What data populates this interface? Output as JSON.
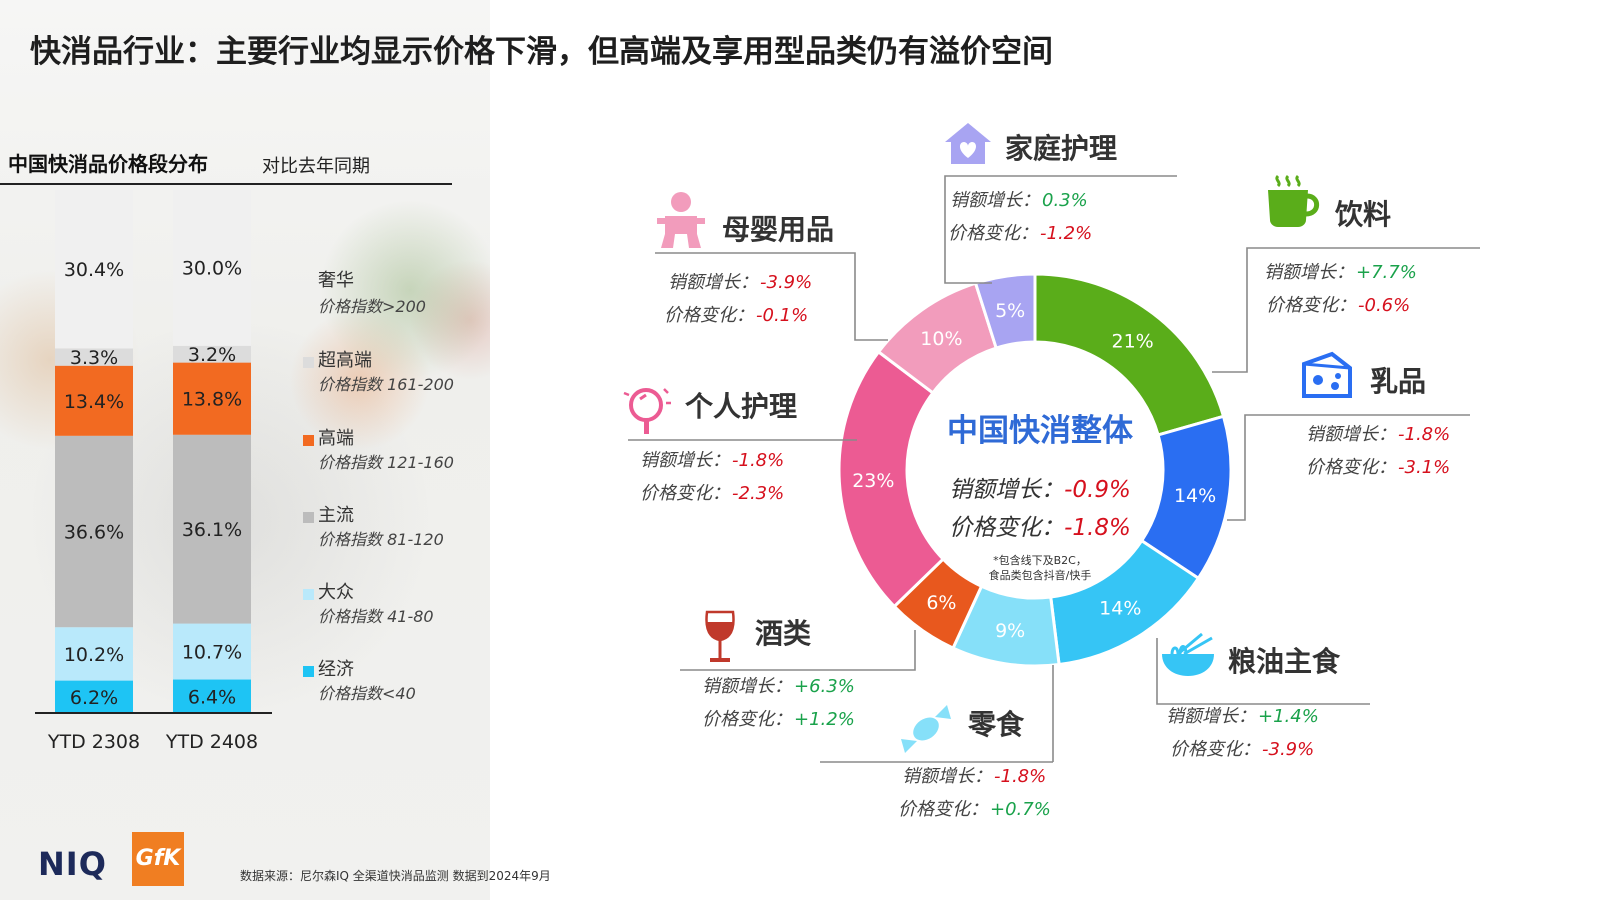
{
  "page_title": "快消品行业：主要行业均显示价格下滑，但高端及享用型品类仍有溢价空间",
  "left_panel": {
    "heading": "中国快消品价格段分布",
    "compare": "对比去年同期"
  },
  "footer": {
    "source": "数据来源：尼尔森IQ 全渠道快消品监测 数据到2024年9月",
    "logo_niq": "NIQ",
    "logo_gfk": "GfK"
  },
  "chart_data": [
    {
      "type": "bar",
      "stacked": true,
      "categories": [
        "YTD 2308",
        "YTD 2408"
      ],
      "ylim": [
        0,
        100
      ],
      "series": [
        {
          "name": "经济",
          "range": "价格指数<40",
          "color": "#1ec4f4",
          "values": [
            6.2,
            6.4
          ],
          "labels": [
            "6.2%",
            "6.4%"
          ]
        },
        {
          "name": "大众",
          "range": "价格指数 41-80",
          "color": "#b9e9fb",
          "values": [
            10.2,
            10.7
          ],
          "labels": [
            "10.2%",
            "10.7%"
          ]
        },
        {
          "name": "主流",
          "range": "价格指数 81-120",
          "color": "#bcbcbc",
          "values": [
            36.6,
            36.1
          ],
          "labels": [
            "36.6%",
            "36.1%"
          ]
        },
        {
          "name": "高端",
          "range": "价格指数 121-160",
          "color": "#f26a21",
          "values": [
            13.4,
            13.8
          ],
          "labels": [
            "13.4%",
            "13.8%"
          ]
        },
        {
          "name": "超高端",
          "range": "价格指数 161-200",
          "color": "#dcdcdc",
          "values": [
            3.3,
            3.2
          ],
          "labels": [
            "3.3%",
            "3.2%"
          ]
        },
        {
          "name": "奢华",
          "range": "价格指数>200",
          "color": "#f0f0f0",
          "values": [
            30.4,
            30.0
          ],
          "labels": [
            "30.4%",
            "30.0%"
          ]
        }
      ]
    },
    {
      "type": "pie",
      "donut": true,
      "title": "中国快消整体",
      "center_metrics": [
        {
          "label": "销额增长：",
          "value": "-0.9%",
          "sign": "neg"
        },
        {
          "label": "价格变化：",
          "value": "-1.8%",
          "sign": "neg"
        }
      ],
      "note_lines": [
        "*包含线下及B2C，",
        "食品类包含抖音/快手"
      ],
      "slices": [
        {
          "name": "饮料",
          "value": 21,
          "label": "21%",
          "color": "#5aad1a"
        },
        {
          "name": "乳品",
          "value": 14,
          "label": "14%",
          "color": "#2a6ef2"
        },
        {
          "name": "粮油主食",
          "value": 14,
          "label": "14%",
          "color": "#36c5f5"
        },
        {
          "name": "零食",
          "value": 9,
          "label": "9%",
          "color": "#86e0f9"
        },
        {
          "name": "酒类",
          "value": 6,
          "label": "6%",
          "color": "#e8581e"
        },
        {
          "name": "个人护理",
          "value": 23,
          "label": "23%",
          "color": "#ec5b93"
        },
        {
          "name": "母婴用品",
          "value": 10,
          "label": "10%",
          "color": "#f29cbc"
        },
        {
          "name": "家庭护理",
          "value": 5,
          "label": "5%",
          "color": "#a8a4f2"
        }
      ]
    }
  ],
  "categories": {
    "home_care": {
      "name": "家庭护理",
      "icon": "house-heart-icon",
      "sales_label": "销额增长：",
      "sales": "0.3%",
      "sales_sign": "pos",
      "price_label": "价格变化：",
      "price": "-1.2%",
      "price_sign": "neg"
    },
    "beverage": {
      "name": "饮料",
      "icon": "coffee-cup-icon",
      "sales_label": "销额增长：",
      "sales": "+7.7%",
      "sales_sign": "pos",
      "price_label": "价格变化：",
      "price": "-0.6%",
      "price_sign": "neg"
    },
    "dairy": {
      "name": "乳品",
      "icon": "cheese-icon",
      "sales_label": "销额增长：",
      "sales": "-1.8%",
      "sales_sign": "neg",
      "price_label": "价格变化：",
      "price": "-3.1%",
      "price_sign": "neg"
    },
    "grain_oil": {
      "name": "粮油主食",
      "icon": "noodle-bowl-icon",
      "sales_label": "销额增长：",
      "sales": "+1.4%",
      "sales_sign": "pos",
      "price_label": "价格变化：",
      "price": "-3.9%",
      "price_sign": "neg"
    },
    "snacks": {
      "name": "零食",
      "icon": "candy-icon",
      "sales_label": "销额增长：",
      "sales": "-1.8%",
      "sales_sign": "neg",
      "price_label": "价格变化：",
      "price": "+0.7%",
      "price_sign": "pos"
    },
    "liquor": {
      "name": "酒类",
      "icon": "wine-glass-icon",
      "sales_label": "销额增长：",
      "sales": "+6.3%",
      "sales_sign": "pos",
      "price_label": "价格变化：",
      "price": "+1.2%",
      "price_sign": "pos"
    },
    "personal_care": {
      "name": "个人护理",
      "icon": "mirror-icon",
      "sales_label": "销额增长：",
      "sales": "-1.8%",
      "sales_sign": "neg",
      "price_label": "价格变化：",
      "price": "-2.3%",
      "price_sign": "neg"
    },
    "mother_baby": {
      "name": "母婴用品",
      "icon": "baby-icon",
      "sales_label": "销额增长：",
      "sales": "-3.9%",
      "sales_sign": "neg",
      "price_label": "价格变化：",
      "price": "-0.1%",
      "price_sign": "neg"
    }
  }
}
